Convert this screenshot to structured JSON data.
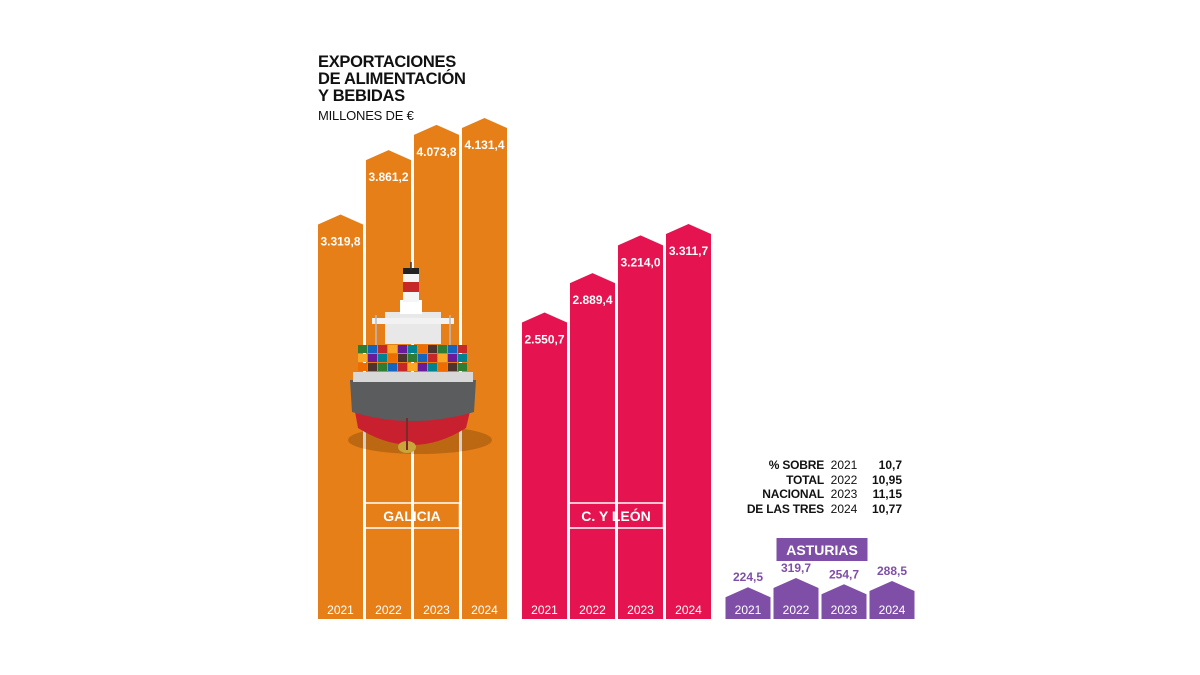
{
  "title_lines": [
    "EXPORTACIONES",
    "DE ALIMENTACIÓN",
    "Y BEBIDAS"
  ],
  "subtitle": "MILLONES DE €",
  "colors": {
    "galicia": "#E67F17",
    "cyl": "#E5134F",
    "asturias": "#7F4FA8"
  },
  "chart_data": [
    {
      "type": "bar",
      "region": "GALICIA",
      "categories": [
        "2021",
        "2022",
        "2023",
        "2024"
      ],
      "values": [
        3319.8,
        3861.2,
        4073.8,
        4131.4
      ],
      "value_labels": [
        "3.319,8",
        "3.861,2",
        "4.073,8",
        "4.131,4"
      ],
      "color": "#E67F17"
    },
    {
      "type": "bar",
      "region": "C. Y LEÓN",
      "categories": [
        "2021",
        "2022",
        "2023",
        "2024"
      ],
      "values": [
        2550.7,
        2889.4,
        3214.0,
        3311.7
      ],
      "value_labels": [
        "2.550,7",
        "2.889,4",
        "3.214,0",
        "3.311,7"
      ],
      "color": "#E5134F"
    },
    {
      "type": "bar",
      "region": "ASTURIAS",
      "categories": [
        "2021",
        "2022",
        "2023",
        "2024"
      ],
      "values": [
        224.5,
        319.7,
        254.7,
        288.5
      ],
      "value_labels": [
        "224,5",
        "319,7",
        "254,7",
        "288,5"
      ],
      "color": "#7F4FA8"
    }
  ],
  "pct_table": {
    "labels": [
      "% SOBRE",
      "TOTAL",
      "NACIONAL",
      "DE LAS TRES"
    ],
    "years": [
      "2021",
      "2022",
      "2023",
      "2024"
    ],
    "values": [
      "10,7",
      "10,95",
      "11,15",
      "10,77"
    ]
  },
  "ship_icon": "container-ship-icon"
}
